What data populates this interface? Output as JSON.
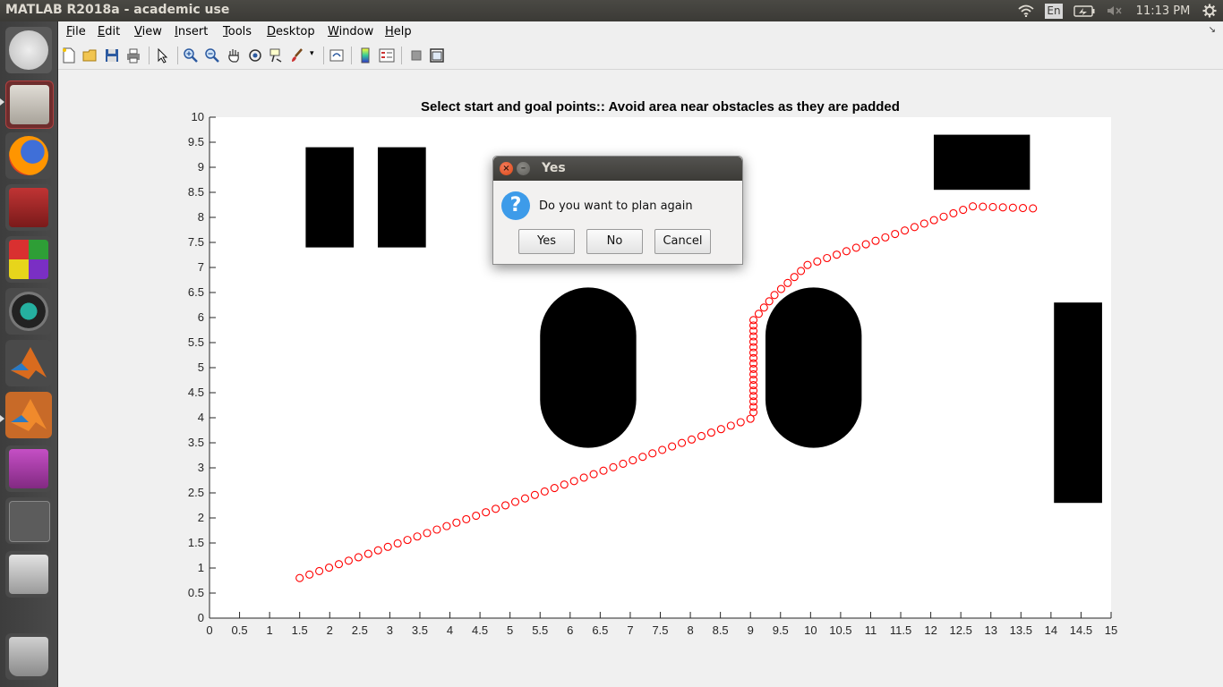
{
  "window": {
    "title": "MATLAB R2018a - academic use"
  },
  "tray": {
    "lang": "En",
    "clock": "11:13 PM"
  },
  "launcher": {
    "items": [
      {
        "name": "ubuntu-dash",
        "color": "#c9c9c9"
      },
      {
        "name": "files",
        "color": "#8a3a3a"
      },
      {
        "name": "firefox",
        "color": "#e66000"
      },
      {
        "name": "terminal-app",
        "color": "#a52a2a"
      },
      {
        "name": "color-app",
        "color": "#e44"
      },
      {
        "name": "webcam-app",
        "color": "#2a7"
      },
      {
        "name": "matlab-1",
        "color": "#d96b1e"
      },
      {
        "name": "matlab-2",
        "color": "#d96b1e"
      },
      {
        "name": "purple-app",
        "color": "#a03aa0"
      },
      {
        "name": "workspaces",
        "color": "#666"
      },
      {
        "name": "disk",
        "color": "#bbb"
      },
      {
        "name": "trash",
        "color": "#aaa"
      }
    ]
  },
  "menu": [
    {
      "label": "File",
      "u": "F",
      "rest": "ile"
    },
    {
      "label": "Edit",
      "u": "E",
      "rest": "dit"
    },
    {
      "label": "View",
      "u": "V",
      "rest": "iew"
    },
    {
      "label": "Insert",
      "u": "I",
      "rest": "nsert"
    },
    {
      "label": "Tools",
      "u": "T",
      "rest": "ools"
    },
    {
      "label": "Desktop",
      "u": "D",
      "rest": "esktop"
    },
    {
      "label": "Window",
      "u": "W",
      "rest": "indow"
    },
    {
      "label": "Help",
      "u": "H",
      "rest": "elp"
    }
  ],
  "toolbar": [
    "new-file-icon",
    "open-folder-icon",
    "save-icon",
    "print-icon",
    "select-arrow-icon",
    "zoom-in-icon",
    "zoom-out-icon",
    "pan-hand-icon",
    "rotate-3d-icon",
    "data-cursor-icon",
    "brush-icon",
    "dropdown-arrow-icon",
    "link-plot-icon",
    "colorbar-icon",
    "legend-icon",
    "hide-plot-tools-icon",
    "show-plot-tools-icon"
  ],
  "dialog": {
    "title": "Yes",
    "message": "Do you want to plan again",
    "buttons": {
      "yes": "Yes",
      "no": "No",
      "cancel": "Cancel"
    }
  },
  "chart_data": {
    "type": "scatter",
    "title": "Select start and goal points:: Avoid area near obstacles as they are padded",
    "xlim": [
      0,
      15
    ],
    "ylim": [
      0,
      10
    ],
    "xticks": [
      "0",
      "0.5",
      "1",
      "1.5",
      "2",
      "2.5",
      "3",
      "3.5",
      "4",
      "4.5",
      "5",
      "5.5",
      "6",
      "6.5",
      "7",
      "7.5",
      "8",
      "8.5",
      "9",
      "9.5",
      "10",
      "10.5",
      "11",
      "11.5",
      "12",
      "12.5",
      "13",
      "13.5",
      "14",
      "14.5",
      "15"
    ],
    "yticks": [
      "0",
      "0.5",
      "1",
      "1.5",
      "2",
      "2.5",
      "3",
      "3.5",
      "4",
      "4.5",
      "5",
      "5.5",
      "6",
      "6.5",
      "7",
      "7.5",
      "8",
      "8.5",
      "9",
      "9.5",
      "10"
    ],
    "grid": false,
    "obstacles": [
      {
        "kind": "rect",
        "x0": 1.6,
        "x1": 2.4,
        "y0": 7.4,
        "y1": 9.4
      },
      {
        "kind": "rect",
        "x0": 2.8,
        "x1": 3.6,
        "y0": 7.4,
        "y1": 9.4
      },
      {
        "kind": "rect",
        "x0": 12.05,
        "x1": 13.65,
        "y0": 8.55,
        "y1": 9.65
      },
      {
        "kind": "rect",
        "x0": 14.05,
        "x1": 14.85,
        "y0": 2.3,
        "y1": 6.3
      },
      {
        "kind": "capsule",
        "x0": 5.5,
        "x1": 7.1,
        "y0": 3.4,
        "y1": 6.6
      },
      {
        "kind": "capsule",
        "x0": 9.25,
        "x1": 10.85,
        "y0": 3.4,
        "y1": 6.6
      }
    ],
    "path_color": "#ff0000",
    "path_segments": [
      {
        "from": [
          1.5,
          0.8
        ],
        "to": [
          9.0,
          3.98
        ],
        "n": 46
      },
      {
        "from": [
          9.05,
          4.0
        ],
        "to": [
          9.05,
          5.95
        ],
        "n": 18
      },
      {
        "from": [
          9.05,
          5.95
        ],
        "to": [
          9.4,
          6.45
        ],
        "n": 4
      },
      {
        "from": [
          9.4,
          6.45
        ],
        "to": [
          9.95,
          7.05
        ],
        "n": 5
      },
      {
        "from": [
          9.95,
          7.05
        ],
        "to": [
          12.7,
          8.22
        ],
        "n": 17
      },
      {
        "from": [
          12.7,
          8.22
        ],
        "to": [
          13.7,
          8.18
        ],
        "n": 6
      }
    ]
  }
}
